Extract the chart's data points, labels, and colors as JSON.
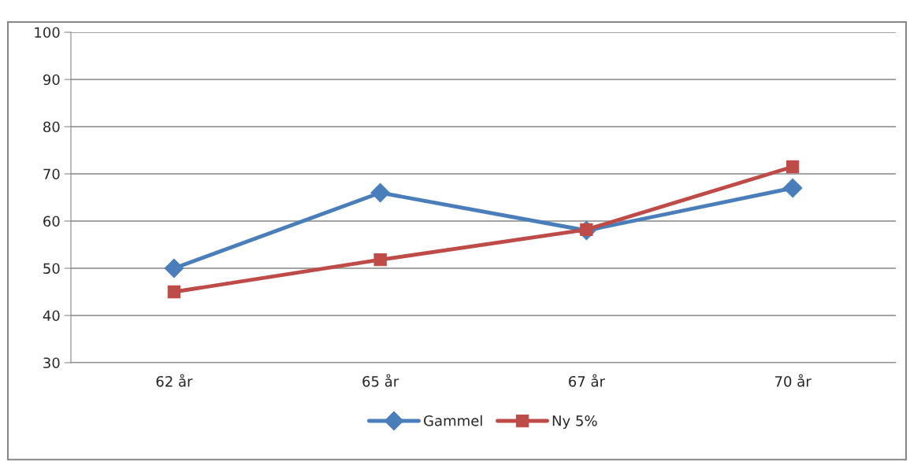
{
  "chart_data": {
    "type": "line",
    "categories": [
      "62 år",
      "65 år",
      "67 år",
      "70 år"
    ],
    "series": [
      {
        "name": "Gammel",
        "color": "#4a7ebb",
        "marker": "diamond",
        "values": [
          50,
          66,
          58,
          67
        ]
      },
      {
        "name": "Ny 5%",
        "color": "#be4b48",
        "marker": "square",
        "values": [
          45,
          51.8,
          58.2,
          71.5
        ]
      }
    ],
    "ylim": [
      30,
      100
    ],
    "yticks": [
      30,
      40,
      50,
      60,
      70,
      80,
      90,
      100
    ],
    "grid": "y",
    "legend": "bottom",
    "line_style": "solid"
  }
}
